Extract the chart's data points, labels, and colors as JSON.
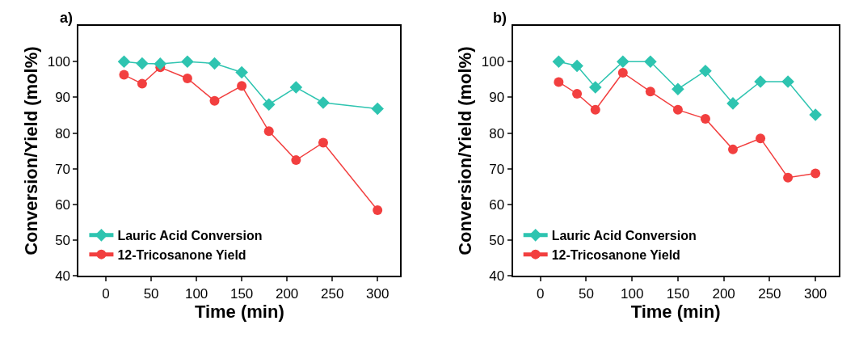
{
  "chart_data": [
    {
      "type": "line",
      "title": "a)",
      "xlabel": "Time (min)",
      "ylabel": "Conversion/Yield (mol%)",
      "xlim": [
        -30,
        325
      ],
      "xticks": [
        0,
        50,
        100,
        150,
        200,
        250,
        300
      ],
      "ylim": [
        40,
        110
      ],
      "yticks": [
        40,
        50,
        60,
        70,
        80,
        90,
        100
      ],
      "grid": false,
      "legend": "bottom left",
      "series": [
        {
          "name": "Lauric Acid Conversion",
          "color": "#2ec4b0",
          "marker": "diamond",
          "x": [
            20,
            40,
            60,
            90,
            120,
            150,
            180,
            210,
            240,
            300
          ],
          "values": [
            100,
            99.5,
            99.4,
            100,
            99.5,
            97,
            88,
            92.8,
            88.5,
            86.8
          ]
        },
        {
          "name": "12-Tricosanone Yield",
          "color": "#f23f3f",
          "marker": "circle",
          "x": [
            20,
            40,
            60,
            90,
            120,
            150,
            180,
            210,
            240,
            300
          ],
          "values": [
            96.3,
            93.8,
            98.4,
            95.3,
            89,
            93.2,
            80.5,
            72.4,
            77.3,
            58.4
          ]
        }
      ]
    },
    {
      "type": "line",
      "title": "b)",
      "xlabel": "Time (min)",
      "ylabel": "Conversion/Yield (mol%)",
      "xlim": [
        -30,
        325
      ],
      "xticks": [
        0,
        50,
        100,
        150,
        200,
        250,
        300
      ],
      "ylim": [
        40,
        110
      ],
      "yticks": [
        40,
        50,
        60,
        70,
        80,
        90,
        100
      ],
      "grid": false,
      "legend": "bottom left",
      "series": [
        {
          "name": "Lauric Acid Conversion",
          "color": "#2ec4b0",
          "marker": "diamond",
          "x": [
            20,
            40,
            60,
            90,
            120,
            150,
            180,
            210,
            240,
            270,
            300
          ],
          "values": [
            100,
            98.8,
            92.8,
            100,
            100,
            92.3,
            97.4,
            88.3,
            94.4,
            94.4,
            85.1
          ]
        },
        {
          "name": "12-Tricosanone Yield",
          "color": "#f23f3f",
          "marker": "circle",
          "x": [
            20,
            40,
            60,
            90,
            120,
            150,
            180,
            210,
            240,
            270,
            300
          ],
          "values": [
            94.3,
            91.0,
            86.5,
            96.9,
            91.6,
            86.5,
            84.0,
            75.4,
            78.5,
            67.5,
            68.7
          ]
        }
      ]
    }
  ]
}
